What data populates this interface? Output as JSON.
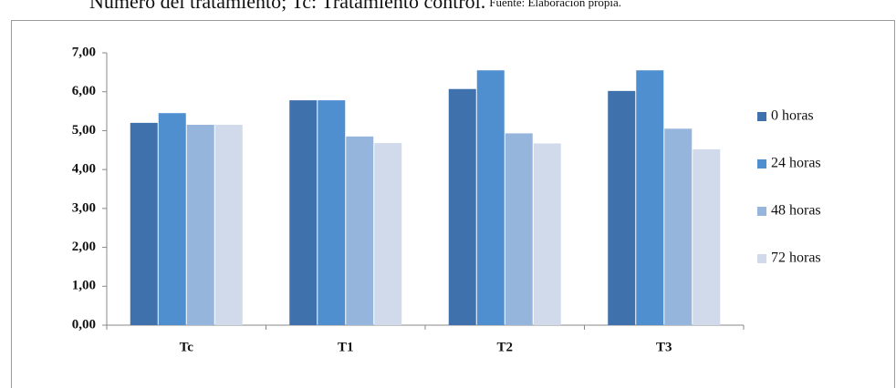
{
  "caption": "Número del tratamiento; Tc: Tratamiento control.",
  "source": "Fuente: Elaboración propia.",
  "chart_data": {
    "type": "bar",
    "categories": [
      "Tc",
      "T1",
      "T2",
      "T3"
    ],
    "series": [
      {
        "name": "0 horas",
        "color": "#3f71ad",
        "values": [
          5.2,
          5.78,
          6.07,
          6.02
        ]
      },
      {
        "name": "24 horas",
        "color": "#4f8fd0",
        "values": [
          5.45,
          5.78,
          6.55,
          6.55
        ]
      },
      {
        "name": "48 horas",
        "color": "#95b5dd",
        "values": [
          5.15,
          4.85,
          4.93,
          5.05
        ]
      },
      {
        "name": "72 horas",
        "color": "#d0daeb",
        "values": [
          5.15,
          4.68,
          4.67,
          4.52
        ]
      }
    ],
    "ylim": [
      0,
      7
    ],
    "yticks": [
      {
        "value": 0,
        "label": "0,00"
      },
      {
        "value": 1,
        "label": "1,00"
      },
      {
        "value": 2,
        "label": "2,00"
      },
      {
        "value": 3,
        "label": "3,00"
      },
      {
        "value": 4,
        "label": "4,00"
      },
      {
        "value": 5,
        "label": "5,00"
      },
      {
        "value": 6,
        "label": "6,00"
      },
      {
        "value": 7,
        "label": "7,00"
      }
    ],
    "legend": "right"
  }
}
